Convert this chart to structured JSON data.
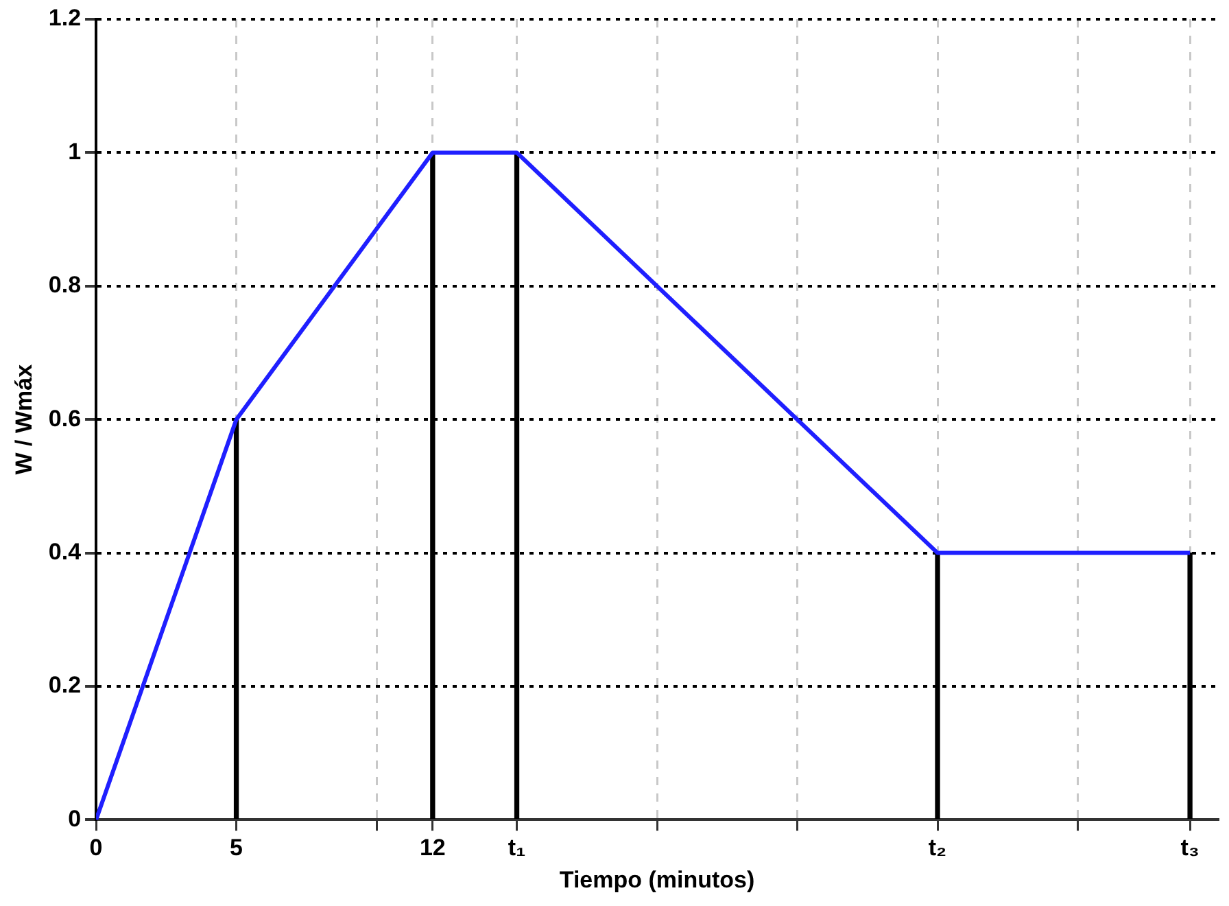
{
  "chart_data": {
    "type": "line",
    "xlabel": "Tiempo (minutos)",
    "ylabel": "W / Wmáx",
    "series": [
      {
        "color": "#1f1fff",
        "x": [
          0,
          5,
          12,
          15,
          30,
          39
        ],
        "values": [
          0,
          0.6,
          1,
          1,
          0.4,
          0.4
        ]
      },
      {
        "type": "bar",
        "color": "#000000",
        "x": [
          5,
          12,
          15,
          30,
          39
        ],
        "values": [
          0.6,
          1,
          1,
          0.4,
          0.4
        ]
      }
    ],
    "xlim": [
      0,
      40
    ],
    "xticks": [
      0,
      5,
      {
        "value": 10,
        "label": null
      },
      12,
      {
        "value": 15,
        "label": "t₁"
      },
      {
        "value": 20,
        "label": null
      },
      {
        "value": 25,
        "label": null
      },
      {
        "value": 30,
        "label": "t₂"
      },
      {
        "value": 35,
        "label": null
      },
      {
        "value": 39,
        "label": "t₃"
      }
    ],
    "ylim": [
      0,
      1.2
    ],
    "yticks": [
      0,
      0.2,
      0.4,
      0.6,
      0.8,
      1,
      1.2
    ],
    "grid": true,
    "legend": false,
    "marker": "none",
    "line_style": "solid"
  }
}
